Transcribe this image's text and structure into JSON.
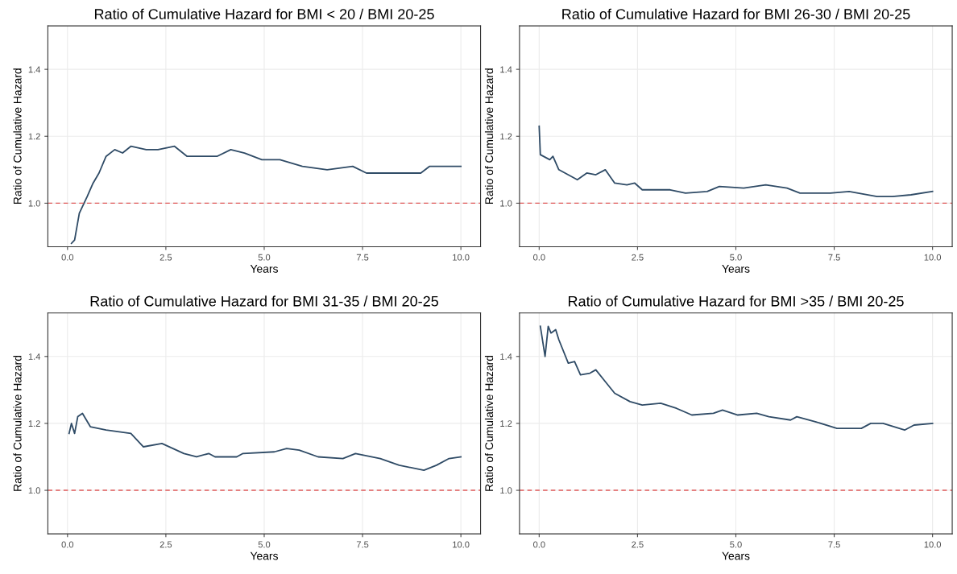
{
  "chart_data": [
    {
      "type": "line",
      "title": "Ratio of Cumulative Hazard for BMI < 20 / BMI 20-25",
      "xlabel": "Years",
      "ylabel": "Ratio of Cumulative Hazard",
      "xlim": [
        -0.5,
        10.5
      ],
      "ylim": [
        0.87,
        1.53
      ],
      "xticks": [
        {
          "value": 0,
          "label": "0.0"
        },
        {
          "value": 2.5,
          "label": "2.5"
        },
        {
          "value": 5,
          "label": "5.0"
        },
        {
          "value": 7.5,
          "label": "7.5"
        },
        {
          "value": 10,
          "label": "10.0"
        }
      ],
      "yticks": [
        {
          "value": 1,
          "label": "1.0"
        },
        {
          "value": 1.2,
          "label": "1.2"
        },
        {
          "value": 1.4,
          "label": "1.4"
        }
      ],
      "grid": true,
      "line_style": "solid",
      "series": [
        {
          "color": "#2f4b66",
          "x": [
            0.1,
            0.18,
            0.3,
            0.5,
            0.65,
            0.8,
            0.98,
            1.2,
            1.4,
            1.61,
            2.0,
            2.3,
            2.72,
            3.04,
            3.36,
            3.8,
            4.15,
            4.5,
            4.94,
            5.4,
            5.97,
            6.6,
            7.25,
            7.6,
            8.4,
            8.98,
            9.2,
            10.0
          ],
          "values": [
            0.88,
            0.89,
            0.97,
            1.02,
            1.06,
            1.09,
            1.14,
            1.16,
            1.15,
            1.17,
            1.16,
            1.16,
            1.17,
            1.14,
            1.14,
            1.14,
            1.16,
            1.15,
            1.13,
            1.13,
            1.11,
            1.1,
            1.11,
            1.09,
            1.09,
            1.09,
            1.11,
            1.11
          ]
        }
      ],
      "ref_lines": [
        {
          "axis": "y",
          "value": 1.0,
          "color": "#e05a5a",
          "line_style": "dashed"
        }
      ]
    },
    {
      "type": "line",
      "title": "Ratio of Cumulative Hazard for BMI 26-30 / BMI 20-25",
      "xlabel": "Years",
      "ylabel": "Ratio of Cumulative Hazard",
      "xlim": [
        -0.5,
        10.5
      ],
      "ylim": [
        0.87,
        1.53
      ],
      "xticks": [
        {
          "value": 0,
          "label": "0.0"
        },
        {
          "value": 2.5,
          "label": "2.5"
        },
        {
          "value": 5,
          "label": "5.0"
        },
        {
          "value": 7.5,
          "label": "7.5"
        },
        {
          "value": 10,
          "label": "10.0"
        }
      ],
      "yticks": [
        {
          "value": 1,
          "label": "1.0"
        },
        {
          "value": 1.2,
          "label": "1.2"
        },
        {
          "value": 1.4,
          "label": "1.4"
        }
      ],
      "grid": true,
      "line_style": "solid",
      "series": [
        {
          "color": "#2f4b66",
          "x": [
            0.0,
            0.03,
            0.27,
            0.35,
            0.5,
            0.97,
            1.21,
            1.44,
            1.68,
            1.92,
            2.23,
            2.43,
            2.62,
            3.33,
            3.72,
            4.27,
            4.58,
            5.2,
            5.76,
            6.3,
            6.63,
            7.4,
            7.88,
            8.59,
            8.98,
            9.45,
            10.0
          ],
          "values": [
            1.23,
            1.145,
            1.13,
            1.14,
            1.1,
            1.07,
            1.09,
            1.085,
            1.1,
            1.06,
            1.055,
            1.06,
            1.04,
            1.04,
            1.03,
            1.035,
            1.05,
            1.045,
            1.055,
            1.045,
            1.03,
            1.03,
            1.035,
            1.02,
            1.02,
            1.025,
            1.035
          ]
        }
      ],
      "ref_lines": [
        {
          "axis": "y",
          "value": 1.0,
          "color": "#e05a5a",
          "line_style": "dashed"
        }
      ]
    },
    {
      "type": "line",
      "title": "Ratio of Cumulative Hazard for BMI 31-35 / BMI 20-25",
      "xlabel": "Years",
      "ylabel": "Ratio of Cumulative Hazard",
      "xlim": [
        -0.5,
        10.5
      ],
      "ylim": [
        0.87,
        1.53
      ],
      "xticks": [
        {
          "value": 0,
          "label": "0.0"
        },
        {
          "value": 2.5,
          "label": "2.5"
        },
        {
          "value": 5,
          "label": "5.0"
        },
        {
          "value": 7.5,
          "label": "7.5"
        },
        {
          "value": 10,
          "label": "10.0"
        }
      ],
      "yticks": [
        {
          "value": 1,
          "label": "1.0"
        },
        {
          "value": 1.2,
          "label": "1.2"
        },
        {
          "value": 1.4,
          "label": "1.4"
        }
      ],
      "grid": true,
      "line_style": "solid",
      "series": [
        {
          "color": "#2f4b66",
          "x": [
            0.04,
            0.1,
            0.18,
            0.26,
            0.38,
            0.58,
            0.98,
            1.61,
            1.93,
            2.4,
            2.96,
            3.28,
            3.59,
            3.75,
            4.3,
            4.46,
            5.26,
            5.57,
            5.89,
            6.37,
            7.0,
            7.32,
            7.95,
            8.43,
            9.06,
            9.38,
            9.7,
            10.0
          ],
          "values": [
            1.17,
            1.2,
            1.17,
            1.22,
            1.23,
            1.19,
            1.18,
            1.17,
            1.13,
            1.14,
            1.11,
            1.1,
            1.11,
            1.1,
            1.1,
            1.11,
            1.115,
            1.125,
            1.12,
            1.1,
            1.095,
            1.11,
            1.095,
            1.075,
            1.06,
            1.075,
            1.095,
            1.1
          ]
        }
      ],
      "ref_lines": [
        {
          "axis": "y",
          "value": 1.0,
          "color": "#e05a5a",
          "line_style": "dashed"
        }
      ]
    },
    {
      "type": "line",
      "title": "Ratio of Cumulative Hazard for BMI >35 / BMI 20-25",
      "xlabel": "Years",
      "ylabel": "Ratio of Cumulative Hazard",
      "xlim": [
        -0.5,
        10.5
      ],
      "ylim": [
        0.87,
        1.53
      ],
      "xticks": [
        {
          "value": 0,
          "label": "0.0"
        },
        {
          "value": 2.5,
          "label": "2.5"
        },
        {
          "value": 5,
          "label": "5.0"
        },
        {
          "value": 7.5,
          "label": "7.5"
        },
        {
          "value": 10,
          "label": "10.0"
        }
      ],
      "yticks": [
        {
          "value": 1,
          "label": "1.0"
        },
        {
          "value": 1.2,
          "label": "1.2"
        },
        {
          "value": 1.4,
          "label": "1.4"
        }
      ],
      "grid": true,
      "line_style": "solid",
      "series": [
        {
          "color": "#2f4b66",
          "x": [
            0.03,
            0.15,
            0.23,
            0.3,
            0.42,
            0.5,
            0.74,
            0.9,
            1.05,
            1.29,
            1.44,
            1.68,
            1.92,
            2.31,
            2.62,
            3.09,
            3.49,
            3.88,
            4.43,
            4.66,
            5.05,
            5.53,
            5.84,
            6.39,
            6.55,
            7.02,
            7.57,
            8.19,
            8.43,
            8.74,
            9.29,
            9.53,
            10.0
          ],
          "values": [
            1.49,
            1.4,
            1.49,
            1.47,
            1.48,
            1.45,
            1.38,
            1.385,
            1.345,
            1.35,
            1.36,
            1.325,
            1.29,
            1.265,
            1.255,
            1.26,
            1.245,
            1.225,
            1.23,
            1.24,
            1.225,
            1.23,
            1.22,
            1.21,
            1.22,
            1.205,
            1.185,
            1.185,
            1.2,
            1.2,
            1.18,
            1.195,
            1.2
          ]
        }
      ],
      "ref_lines": [
        {
          "axis": "y",
          "value": 1.0,
          "color": "#e05a5a",
          "line_style": "dashed"
        }
      ]
    }
  ]
}
